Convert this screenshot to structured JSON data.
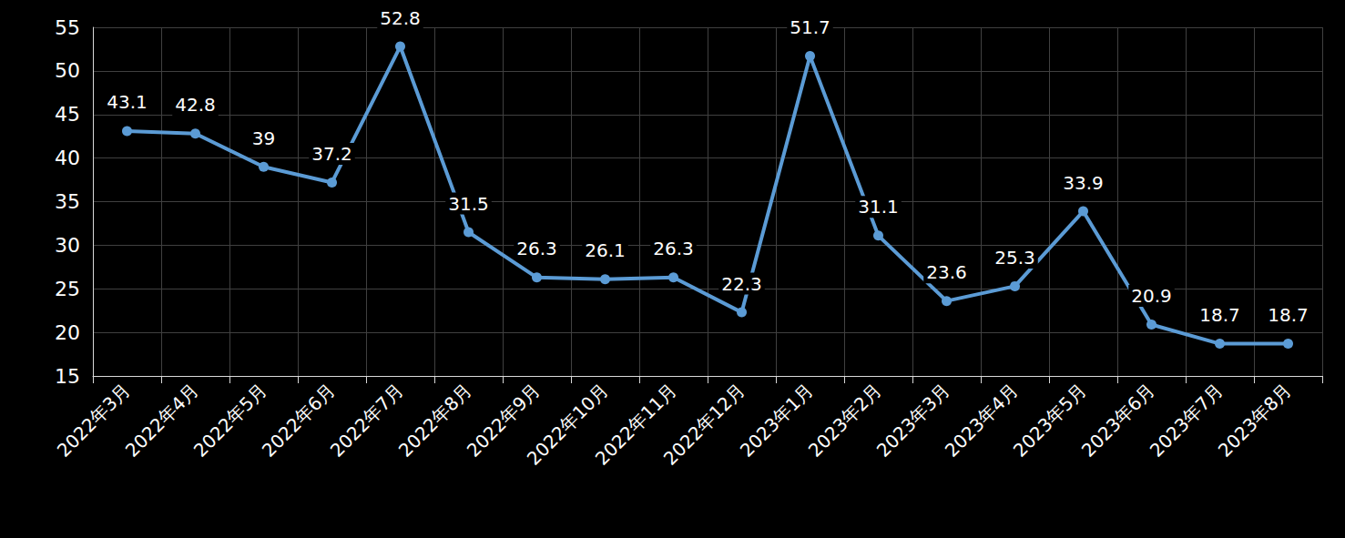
{
  "chart_data": {
    "type": "line",
    "categories": [
      "2022年3月",
      "2022年4月",
      "2022年5月",
      "2022年6月",
      "2022年7月",
      "2022年8月",
      "2022年9月",
      "2022年10月",
      "2022年11月",
      "2022年12月",
      "2023年1月",
      "2023年2月",
      "2023年3月",
      "2023年4月",
      "2023年5月",
      "2023年6月",
      "2023年7月",
      "2023年8月"
    ],
    "values": [
      43.1,
      42.8,
      39,
      37.2,
      52.8,
      31.5,
      26.3,
      26.1,
      26.3,
      22.3,
      51.7,
      31.1,
      23.6,
      25.3,
      33.9,
      20.9,
      18.7,
      18.7
    ],
    "color": "#5b9bd5",
    "ylim": [
      15,
      55
    ],
    "yticks": [
      15,
      20,
      25,
      30,
      35,
      40,
      45,
      50,
      55
    ],
    "grid": true,
    "data_labels": true,
    "marker": "circle"
  }
}
